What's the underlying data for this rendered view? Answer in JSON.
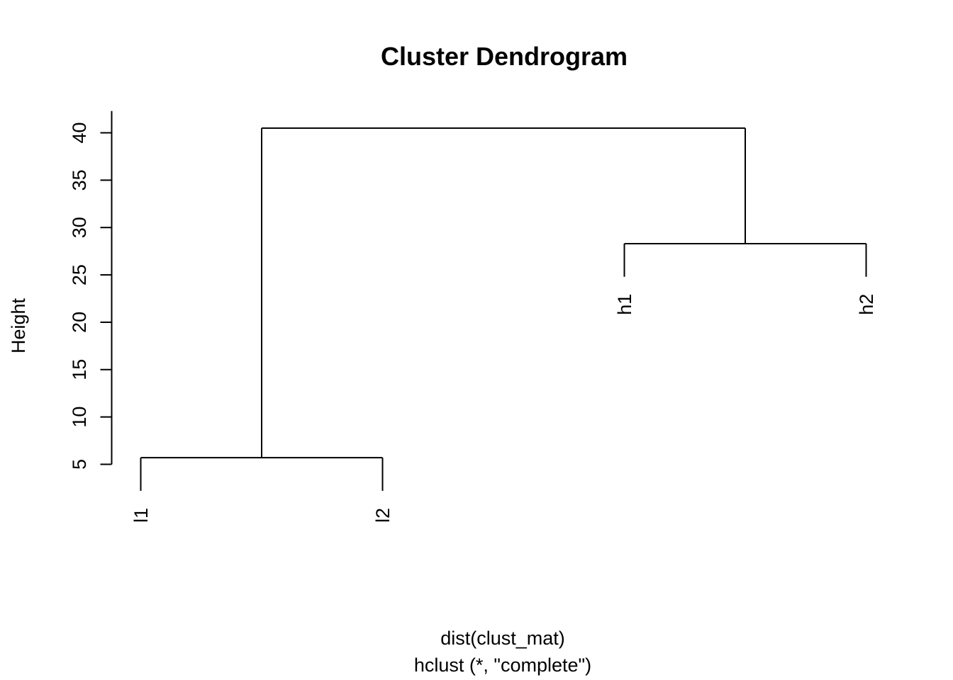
{
  "chart_data": {
    "type": "dendrogram",
    "title": "Cluster Dendrogram",
    "ylabel": "Height",
    "xlabel_line1": "dist(clust_mat)",
    "xlabel_line2": "hclust (*, \"complete\")",
    "ylim": [
      5,
      40
    ],
    "yticks": [
      5,
      10,
      15,
      20,
      25,
      30,
      35,
      40
    ],
    "leaves": [
      "l1",
      "l2",
      "h1",
      "h2"
    ],
    "merges": [
      {
        "name": "l1-l2",
        "left": "l1",
        "right": "l2",
        "height": 5.7
      },
      {
        "name": "h1-h2",
        "left": "h1",
        "right": "h2",
        "height": 28.3
      },
      {
        "name": "root",
        "left": "l1-l2",
        "right": "h1-h2",
        "height": 40.5
      }
    ],
    "hang_height": 3.5
  }
}
